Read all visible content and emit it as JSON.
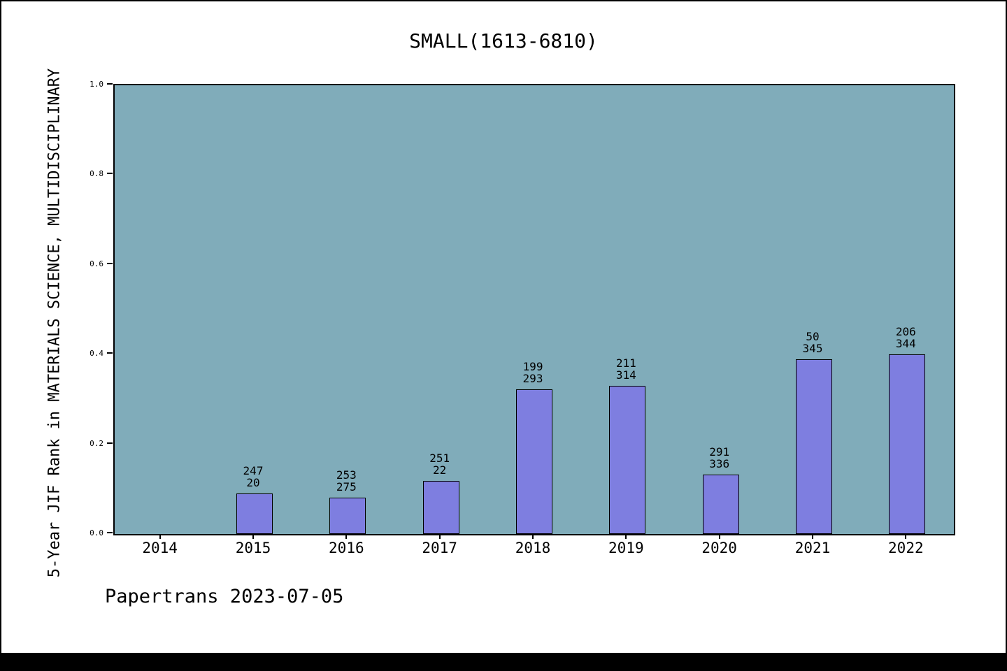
{
  "title": "SMALL(1613-6810)",
  "ylabel": "5-Year JIF Rank in MATERIALS SCIENCE, MULTIDISCIPLINARY",
  "footer": "Papertrans 2023-07-05",
  "colors": {
    "figure_bg": "#ffffff",
    "plot_bg": "#80acba",
    "bar_fill": "#7e7ee0",
    "bar_edge": "#000000",
    "bottom_bar": "#000000"
  },
  "chart_data": {
    "type": "bar",
    "title": "SMALL(1613-6810)",
    "xlabel": "",
    "ylabel": "5-Year JIF Rank in MATERIALS SCIENCE, MULTIDISCIPLINARY",
    "ylim": [
      0.0,
      1.0
    ],
    "ytick_labels": [
      "0.0",
      "0.2",
      "0.4",
      "0.6",
      "0.8",
      "1.0"
    ],
    "grid": false,
    "legend": "none",
    "categories": [
      "2014",
      "2015",
      "2016",
      "2017",
      "2018",
      "2019",
      "2020",
      "2021",
      "2022"
    ],
    "values": [
      null,
      0.09,
      0.081,
      0.118,
      0.322,
      0.33,
      0.133,
      0.389,
      0.401
    ],
    "bar_labels": [
      [],
      [
        "247",
        "20"
      ],
      [
        "253",
        "275"
      ],
      [
        "251",
        "22"
      ],
      [
        "199",
        "293"
      ],
      [
        "211",
        "314"
      ],
      [
        "291",
        "336"
      ],
      [
        "50",
        "345"
      ],
      [
        "206",
        "344"
      ]
    ],
    "annotation": "Papertrans 2023-07-05"
  }
}
